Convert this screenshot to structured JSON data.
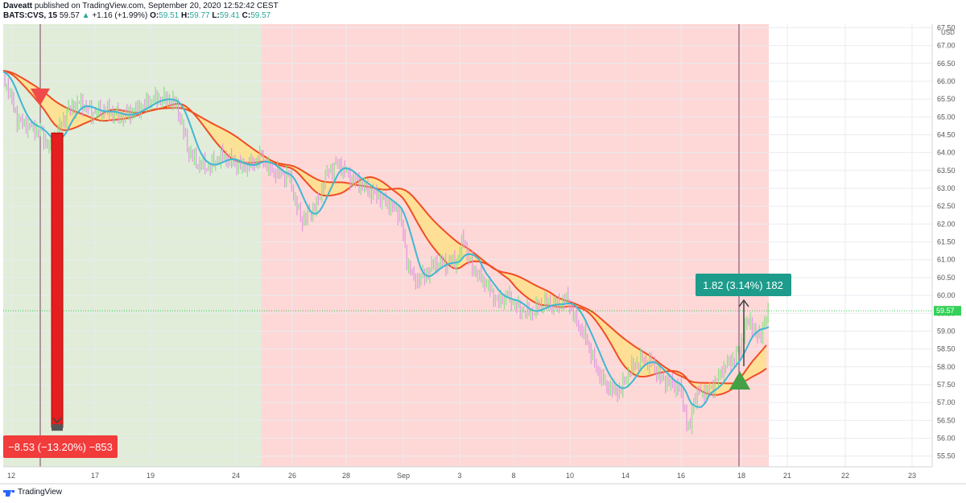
{
  "header": {
    "publisher": "Daveatt",
    "published_text": "published on TradingView.com, September 20, 2020 12:52:42 CEST",
    "symbol": "BATS:CVS, 15",
    "last": "59.57",
    "change_arrow": "▲",
    "change": "+1.16 (+1.99%)",
    "o_label": "O:",
    "o": "59.51",
    "h_label": "H:",
    "h": "59.77",
    "l_label": "L:",
    "l": "59.41",
    "c_label": "C:",
    "c": "59.57"
  },
  "footer": {
    "brand": "TradingView"
  },
  "colors": {
    "green_zone": "#e1ecd9",
    "red_zone": "#fed7d7",
    "band_fill": "#ffe08a",
    "band_line": "#ef4d23",
    "fast_ma": "#3fb7d3",
    "candle_up": "#8ee089",
    "candle_down": "#e19ae0",
    "marker_red": "#f04a4a",
    "marker_green": "#43a047",
    "label_red": "#f23b3b",
    "label_teal": "#1d9b8b",
    "price_tag": "#34d058"
  },
  "chart_data": {
    "type": "line",
    "symbol": "BATS:CVS",
    "interval": "15",
    "y_unit": "USD",
    "ylim": [
      55.2,
      67.6
    ],
    "y_ticks": [
      "67.50",
      "67.00",
      "66.50",
      "66.00",
      "65.50",
      "65.00",
      "64.50",
      "64.00",
      "63.50",
      "63.00",
      "62.50",
      "62.00",
      "61.50",
      "61.00",
      "60.50",
      "60.00",
      "59.50",
      "59.00",
      "58.50",
      "58.00",
      "57.50",
      "57.00",
      "56.50",
      "56.00",
      "55.50"
    ],
    "x_ticks": [
      "12",
      "17",
      "19",
      "24",
      "26",
      "28",
      "Sep",
      "3",
      "8",
      "10",
      "14",
      "16",
      "18",
      "21",
      "22",
      "23"
    ],
    "last_price_label": "59.57",
    "last_price": 59.57,
    "price_path": [
      [
        0,
        66.3
      ],
      [
        10,
        65.8
      ],
      [
        22,
        64.9
      ],
      [
        40,
        64.7
      ],
      [
        50,
        64.6
      ],
      [
        62,
        64.1
      ],
      [
        72,
        64.6
      ],
      [
        85,
        65.2
      ],
      [
        100,
        65.4
      ],
      [
        115,
        65.1
      ],
      [
        130,
        65.2
      ],
      [
        150,
        65.0
      ],
      [
        170,
        65.2
      ],
      [
        190,
        65.5
      ],
      [
        210,
        65.5
      ],
      [
        220,
        65.3
      ],
      [
        228,
        64.6
      ],
      [
        235,
        64.0
      ],
      [
        245,
        63.7
      ],
      [
        260,
        63.6
      ],
      [
        275,
        63.9
      ],
      [
        285,
        63.8
      ],
      [
        300,
        63.6
      ],
      [
        315,
        63.7
      ],
      [
        325,
        63.9
      ],
      [
        335,
        63.5
      ],
      [
        350,
        63.4
      ],
      [
        360,
        63.3
      ],
      [
        368,
        62.5
      ],
      [
        375,
        62.1
      ],
      [
        385,
        62.3
      ],
      [
        395,
        62.6
      ],
      [
        405,
        63.4
      ],
      [
        420,
        63.7
      ],
      [
        435,
        63.3
      ],
      [
        450,
        63.1
      ],
      [
        460,
        62.9
      ],
      [
        470,
        62.8
      ],
      [
        485,
        62.5
      ],
      [
        497,
        62.3
      ],
      [
        505,
        61.0
      ],
      [
        515,
        60.4
      ],
      [
        530,
        60.6
      ],
      [
        540,
        60.9
      ],
      [
        555,
        60.9
      ],
      [
        570,
        61.0
      ],
      [
        575,
        61.7
      ],
      [
        582,
        61.0
      ],
      [
        592,
        60.6
      ],
      [
        605,
        60.3
      ],
      [
        618,
        59.8
      ],
      [
        630,
        60.0
      ],
      [
        645,
        59.6
      ],
      [
        660,
        59.5
      ],
      [
        675,
        59.8
      ],
      [
        690,
        59.7
      ],
      [
        705,
        59.9
      ],
      [
        715,
        59.3
      ],
      [
        728,
        58.8
      ],
      [
        740,
        58.0
      ],
      [
        752,
        57.5
      ],
      [
        765,
        57.3
      ],
      [
        772,
        57.4
      ],
      [
        782,
        57.9
      ],
      [
        795,
        58.2
      ],
      [
        810,
        58.1
      ],
      [
        820,
        57.7
      ],
      [
        835,
        57.5
      ],
      [
        845,
        57.4
      ],
      [
        852,
        56.6
      ],
      [
        857,
        56.1
      ],
      [
        860,
        57.0
      ],
      [
        868,
        57.3
      ],
      [
        880,
        57.3
      ],
      [
        890,
        57.6
      ],
      [
        900,
        58.0
      ],
      [
        910,
        58.2
      ],
      [
        918,
        58.4
      ],
      [
        925,
        59.1
      ],
      [
        932,
        59.3
      ],
      [
        940,
        58.8
      ],
      [
        948,
        59.1
      ],
      [
        955,
        59.57
      ]
    ],
    "annotations": [
      {
        "type": "range",
        "change": "−8.53",
        "percent": "(−13.20%)",
        "bars": "−853",
        "label": "−8.53 (−13.20%) −853",
        "direction": "down"
      },
      {
        "type": "range",
        "change": "1.82",
        "percent": "(3.14%)",
        "bars": "182",
        "label": "1.82 (3.14%) 182",
        "direction": "up"
      }
    ],
    "grid": true,
    "legend": "none"
  }
}
